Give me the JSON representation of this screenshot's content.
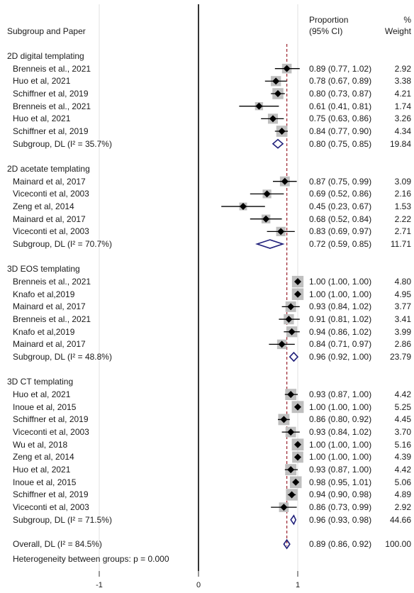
{
  "header": {
    "label_col": "Subgroup and Paper",
    "ci_col_line1": "Proportion",
    "ci_col_line2": "(95% CI)",
    "weight_col_line1": "%",
    "weight_col_line2": "Weight"
  },
  "footer": {
    "heterogeneity": "Heterogeneity between groups: p = 0.000"
  },
  "chart_data": {
    "type": "forest",
    "xlim": [
      -1,
      1.2
    ],
    "xticks": [
      "-1",
      "0",
      "1"
    ],
    "null_line": 0,
    "overall_line": 0.89,
    "groups": [
      {
        "title": "2D digital templating",
        "studies": [
          {
            "label": "Brenneis et al., 2021",
            "est": 0.89,
            "lo": 0.77,
            "hi": 1.02,
            "ci": "0.89 (0.77, 1.02)",
            "weight": "2.92"
          },
          {
            "label": "Huo et al, 2021",
            "est": 0.78,
            "lo": 0.67,
            "hi": 0.89,
            "ci": "0.78 (0.67, 0.89)",
            "weight": "3.38"
          },
          {
            "label": "Schiffner et al, 2019",
            "est": 0.8,
            "lo": 0.73,
            "hi": 0.87,
            "ci": "0.80 (0.73, 0.87)",
            "weight": "4.21"
          },
          {
            "label": "Brenneis et al., 2021",
            "est": 0.61,
            "lo": 0.41,
            "hi": 0.81,
            "ci": "0.61 (0.41, 0.81)",
            "weight": "1.74"
          },
          {
            "label": "Huo et al, 2021",
            "est": 0.75,
            "lo": 0.63,
            "hi": 0.86,
            "ci": "0.75 (0.63, 0.86)",
            "weight": "3.26"
          },
          {
            "label": "Schiffner et al, 2019",
            "est": 0.84,
            "lo": 0.77,
            "hi": 0.9,
            "ci": "0.84 (0.77, 0.90)",
            "weight": "4.34"
          }
        ],
        "subgroup": {
          "label": "Subgroup, DL (I² = 35.7%)",
          "est": 0.8,
          "lo": 0.75,
          "hi": 0.85,
          "ci": "0.80 (0.75, 0.85)",
          "weight": "19.84"
        }
      },
      {
        "title": "2D acetate templating",
        "studies": [
          {
            "label": "Mainard et al, 2017",
            "est": 0.87,
            "lo": 0.75,
            "hi": 0.99,
            "ci": "0.87 (0.75, 0.99)",
            "weight": "3.09"
          },
          {
            "label": "Viceconti et al, 2003",
            "est": 0.69,
            "lo": 0.52,
            "hi": 0.86,
            "ci": "0.69 (0.52, 0.86)",
            "weight": "2.16"
          },
          {
            "label": "Zeng et al, 2014",
            "est": 0.45,
            "lo": 0.23,
            "hi": 0.67,
            "ci": "0.45 (0.23, 0.67)",
            "weight": "1.53"
          },
          {
            "label": "Mainard et al, 2017",
            "est": 0.68,
            "lo": 0.52,
            "hi": 0.84,
            "ci": "0.68 (0.52, 0.84)",
            "weight": "2.22"
          },
          {
            "label": "Viceconti et al, 2003",
            "est": 0.83,
            "lo": 0.69,
            "hi": 0.97,
            "ci": "0.83 (0.69, 0.97)",
            "weight": "2.71"
          }
        ],
        "subgroup": {
          "label": "Subgroup, DL (I² = 70.7%)",
          "est": 0.72,
          "lo": 0.59,
          "hi": 0.85,
          "ci": "0.72 (0.59, 0.85)",
          "weight": "11.71"
        }
      },
      {
        "title": "3D EOS templating",
        "studies": [
          {
            "label": "Brenneis et al., 2021",
            "est": 1.0,
            "lo": 1.0,
            "hi": 1.0,
            "ci": "1.00 (1.00, 1.00)",
            "weight": "4.80"
          },
          {
            "label": "Knafo et al,2019",
            "est": 1.0,
            "lo": 1.0,
            "hi": 1.0,
            "ci": "1.00 (1.00, 1.00)",
            "weight": "4.95"
          },
          {
            "label": "Mainard et al, 2017",
            "est": 0.93,
            "lo": 0.84,
            "hi": 1.02,
            "ci": "0.93 (0.84, 1.02)",
            "weight": "3.77"
          },
          {
            "label": "Brenneis et al., 2021",
            "est": 0.91,
            "lo": 0.81,
            "hi": 1.02,
            "ci": "0.91 (0.81, 1.02)",
            "weight": "3.41"
          },
          {
            "label": "Knafo et al,2019",
            "est": 0.94,
            "lo": 0.86,
            "hi": 1.02,
            "ci": "0.94 (0.86, 1.02)",
            "weight": "3.99"
          },
          {
            "label": "Mainard et al, 2017",
            "est": 0.84,
            "lo": 0.71,
            "hi": 0.97,
            "ci": "0.84 (0.71, 0.97)",
            "weight": "2.86"
          }
        ],
        "subgroup": {
          "label": "Subgroup, DL (I² = 48.8%)",
          "est": 0.96,
          "lo": 0.92,
          "hi": 1.0,
          "ci": "0.96 (0.92, 1.00)",
          "weight": "23.79"
        }
      },
      {
        "title": "3D CT templating",
        "studies": [
          {
            "label": "Huo et al, 2021",
            "est": 0.93,
            "lo": 0.87,
            "hi": 1.0,
            "ci": "0.93 (0.87, 1.00)",
            "weight": "4.42"
          },
          {
            "label": "Inoue et al, 2015",
            "est": 1.0,
            "lo": 1.0,
            "hi": 1.0,
            "ci": "1.00 (1.00, 1.00)",
            "weight": "5.25"
          },
          {
            "label": "Schiffner et al, 2019",
            "est": 0.86,
            "lo": 0.8,
            "hi": 0.92,
            "ci": "0.86 (0.80, 0.92)",
            "weight": "4.45"
          },
          {
            "label": "Viceconti et al, 2003",
            "est": 0.93,
            "lo": 0.84,
            "hi": 1.02,
            "ci": "0.93 (0.84, 1.02)",
            "weight": "3.70"
          },
          {
            "label": "Wu et al, 2018",
            "est": 1.0,
            "lo": 1.0,
            "hi": 1.0,
            "ci": "1.00 (1.00, 1.00)",
            "weight": "5.16"
          },
          {
            "label": "Zeng et al, 2014",
            "est": 1.0,
            "lo": 1.0,
            "hi": 1.0,
            "ci": "1.00 (1.00, 1.00)",
            "weight": "4.39"
          },
          {
            "label": "Huo et al, 2021",
            "est": 0.93,
            "lo": 0.87,
            "hi": 1.0,
            "ci": "0.93 (0.87, 1.00)",
            "weight": "4.42"
          },
          {
            "label": "Inoue et al, 2015",
            "est": 0.98,
            "lo": 0.95,
            "hi": 1.01,
            "ci": "0.98 (0.95, 1.01)",
            "weight": "5.06"
          },
          {
            "label": "Schiffner et al, 2019",
            "est": 0.94,
            "lo": 0.9,
            "hi": 0.98,
            "ci": "0.94 (0.90, 0.98)",
            "weight": "4.89"
          },
          {
            "label": "Viceconti et al, 2003",
            "est": 0.86,
            "lo": 0.73,
            "hi": 0.99,
            "ci": "0.86 (0.73, 0.99)",
            "weight": "2.92"
          }
        ],
        "subgroup": {
          "label": "Subgroup, DL (I² = 71.5%)",
          "est": 0.96,
          "lo": 0.93,
          "hi": 0.98,
          "ci": "0.96 (0.93, 0.98)",
          "weight": "44.66"
        }
      }
    ],
    "overall": {
      "label": "Overall, DL (I² = 84.5%)",
      "est": 0.89,
      "lo": 0.86,
      "hi": 0.92,
      "ci": "0.89 (0.86, 0.92)",
      "weight": "100.00"
    },
    "colors": {
      "diamond": "#1f1f7a",
      "marker": "#000000",
      "box": "#bfbfbf",
      "overall_line": "#a0303a",
      "grid": "#e6e6e6",
      "null_line": "#000000"
    }
  }
}
